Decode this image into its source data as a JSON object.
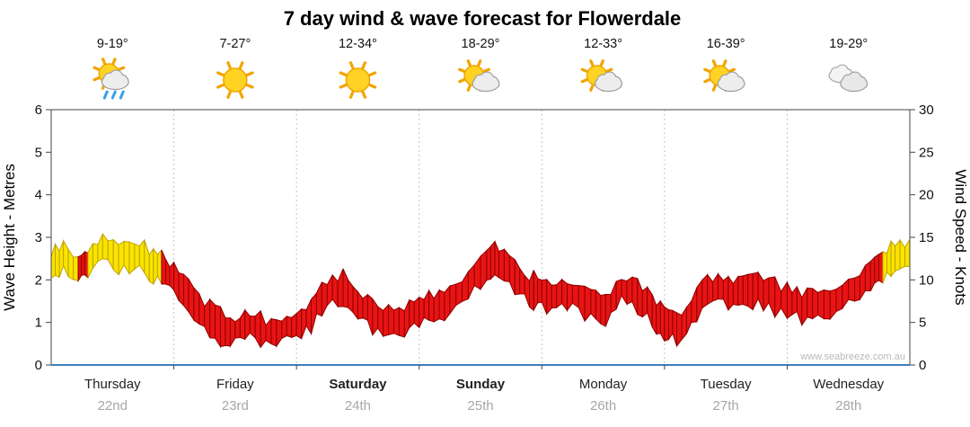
{
  "title": "7 day wind & wave forecast for Flowerdale",
  "watermark": "www.seabreeze.com.au",
  "days": [
    {
      "name": "Thursday",
      "date": "22nd",
      "temp": "9-19°",
      "icon": "sun-rain",
      "bold": false
    },
    {
      "name": "Friday",
      "date": "23rd",
      "temp": "7-27°",
      "icon": "sun",
      "bold": false
    },
    {
      "name": "Saturday",
      "date": "24th",
      "temp": "12-34°",
      "icon": "sun",
      "bold": true
    },
    {
      "name": "Sunday",
      "date": "25th",
      "temp": "18-29°",
      "icon": "partly-cloudy",
      "bold": true
    },
    {
      "name": "Monday",
      "date": "26th",
      "temp": "12-33°",
      "icon": "partly-cloudy",
      "bold": false
    },
    {
      "name": "Tuesday",
      "date": "27th",
      "temp": "16-39°",
      "icon": "partly-cloudy",
      "bold": false
    },
    {
      "name": "Wednesday",
      "date": "28th",
      "temp": "19-29°",
      "icon": "cloudy",
      "bold": false
    }
  ],
  "chart_data": {
    "type": "area",
    "title": "7 day wind & wave forecast for Flowerdale",
    "left_axis": {
      "label": "Wave Height - Metres",
      "min": 0,
      "max": 6,
      "ticks": [
        0,
        1,
        2,
        3,
        4,
        5,
        6
      ]
    },
    "right_axis": {
      "label": "Wind Speed - Knots",
      "min": 0,
      "max": 30,
      "ticks": [
        0,
        5,
        10,
        15,
        20,
        25,
        30
      ]
    },
    "grid": "vertical-day-separators",
    "legend_position": "none",
    "colors": {
      "observed": "#f9e400",
      "observed_edge": "#bfa300",
      "forecast": "#e81414",
      "forecast_edge": "#8f0000",
      "baseline": "#3f7fbf"
    },
    "series": [
      {
        "name": "Wind Speed (knots, band colored yellow=observed / red=forecast)",
        "points": [
          [
            0.0,
            11.5,
            "y"
          ],
          [
            0.1,
            12.5,
            "y"
          ],
          [
            0.22,
            11.0,
            "r"
          ],
          [
            0.3,
            12.0,
            "y"
          ],
          [
            0.42,
            13.5,
            "y"
          ],
          [
            0.55,
            13.0,
            "y"
          ],
          [
            0.68,
            13.0,
            "y"
          ],
          [
            0.8,
            12.0,
            "y"
          ],
          [
            0.9,
            11.5,
            "r"
          ],
          [
            1.0,
            10.0,
            "r"
          ],
          [
            1.12,
            8.0,
            "r"
          ],
          [
            1.25,
            6.0,
            "r"
          ],
          [
            1.38,
            4.5,
            "r"
          ],
          [
            1.5,
            4.0,
            "r"
          ],
          [
            1.62,
            4.8,
            "r"
          ],
          [
            1.75,
            3.8,
            "r"
          ],
          [
            1.88,
            4.2,
            "r"
          ],
          [
            2.0,
            5.0,
            "r"
          ],
          [
            2.12,
            6.0,
            "r"
          ],
          [
            2.25,
            8.5,
            "r"
          ],
          [
            2.38,
            9.0,
            "r"
          ],
          [
            2.5,
            7.5,
            "r"
          ],
          [
            2.62,
            5.5,
            "r"
          ],
          [
            2.75,
            4.8,
            "r"
          ],
          [
            2.88,
            5.5,
            "r"
          ],
          [
            3.0,
            6.5,
            "r"
          ],
          [
            3.12,
            7.0,
            "r"
          ],
          [
            3.25,
            7.5,
            "r"
          ],
          [
            3.4,
            9.5,
            "r"
          ],
          [
            3.55,
            11.5,
            "r"
          ],
          [
            3.65,
            12.5,
            "r"
          ],
          [
            3.78,
            10.5,
            "r"
          ],
          [
            3.9,
            9.0,
            "r"
          ],
          [
            4.0,
            8.5,
            "r"
          ],
          [
            4.12,
            8.0,
            "r"
          ],
          [
            4.25,
            8.5,
            "r"
          ],
          [
            4.4,
            7.0,
            "r"
          ],
          [
            4.52,
            6.0,
            "r"
          ],
          [
            4.65,
            9.0,
            "r"
          ],
          [
            4.78,
            8.0,
            "r"
          ],
          [
            4.9,
            6.5,
            "r"
          ],
          [
            5.0,
            5.0,
            "r"
          ],
          [
            5.1,
            4.5,
            "r"
          ],
          [
            5.22,
            6.0,
            "r"
          ],
          [
            5.35,
            8.5,
            "r"
          ],
          [
            5.48,
            9.0,
            "r"
          ],
          [
            5.6,
            8.0,
            "r"
          ],
          [
            5.72,
            8.8,
            "r"
          ],
          [
            5.85,
            8.2,
            "r"
          ],
          [
            6.0,
            7.5,
            "r"
          ],
          [
            6.12,
            7.0,
            "r"
          ],
          [
            6.25,
            6.8,
            "r"
          ],
          [
            6.4,
            7.5,
            "r"
          ],
          [
            6.55,
            9.0,
            "r"
          ],
          [
            6.68,
            10.5,
            "r"
          ],
          [
            6.78,
            12.0,
            "y"
          ],
          [
            6.88,
            12.5,
            "y"
          ],
          [
            7.0,
            12.5,
            "y"
          ]
        ]
      }
    ]
  }
}
